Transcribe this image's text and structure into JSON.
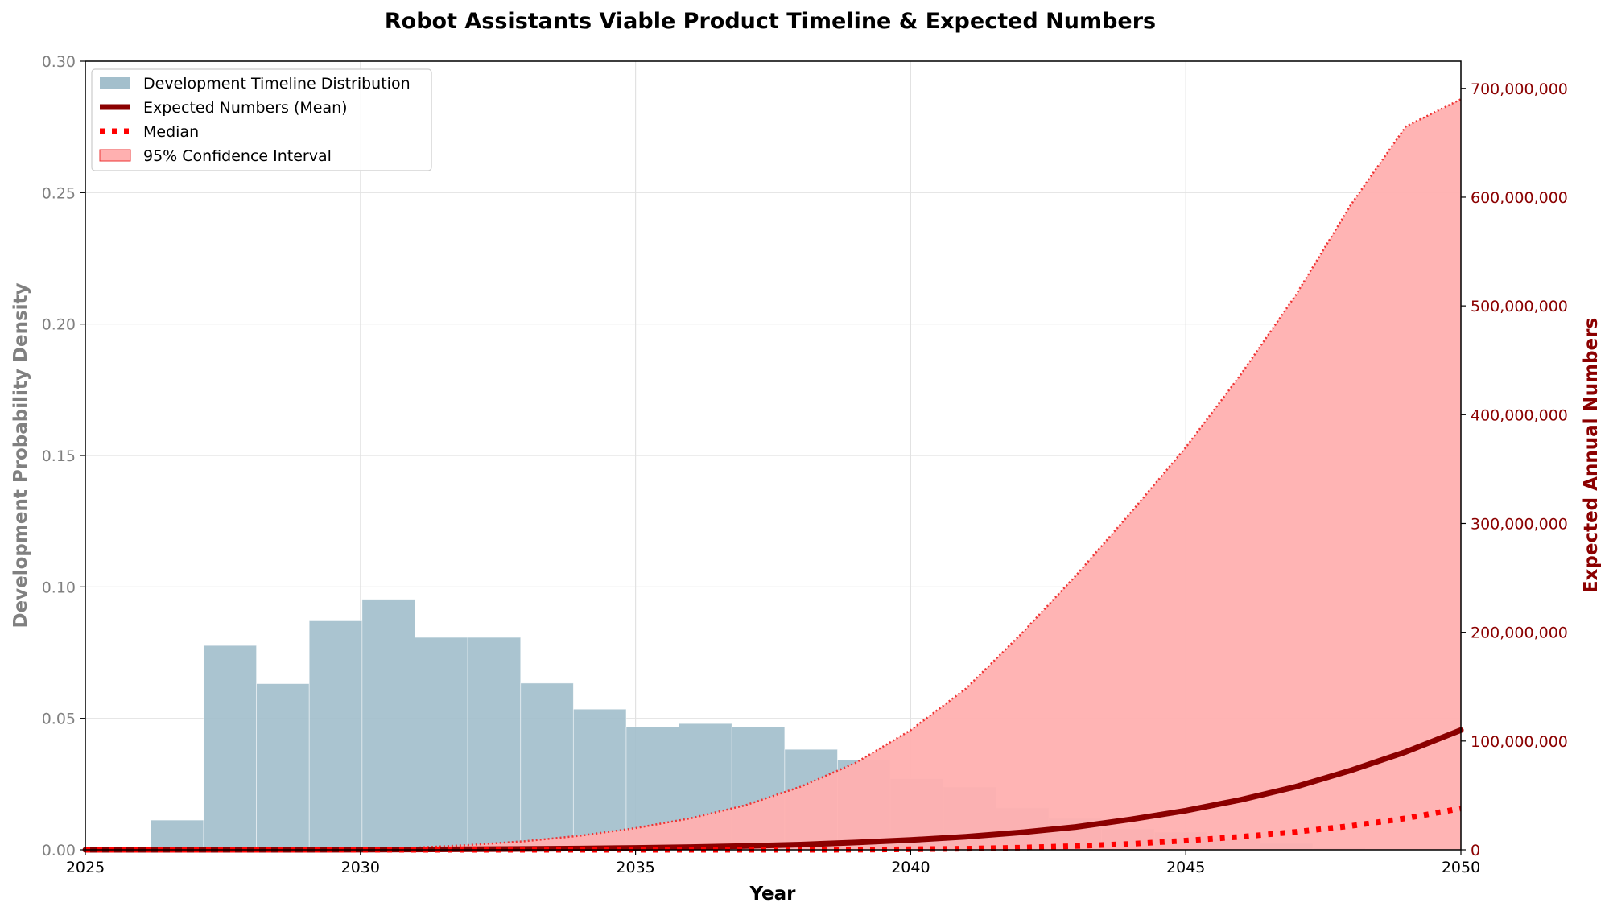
{
  "chart_data": {
    "type": "bar+line+area",
    "title": "Robot Assistants Viable Product Timeline & Expected Numbers",
    "xlabel": "Year",
    "ylabel_left": "Development Probability Density",
    "ylabel_right": "Expected Annual Numbers",
    "xlim": [
      2025,
      2050
    ],
    "ylim_left": [
      0,
      0.3
    ],
    "ylim_right": [
      0,
      725000000
    ],
    "x_ticks": [
      2025,
      2030,
      2035,
      2040,
      2045,
      2050
    ],
    "y_left_ticks": [
      "0.00",
      "0.05",
      "0.10",
      "0.15",
      "0.20",
      "0.25",
      "0.30"
    ],
    "y_right_ticks": [
      "0",
      "100,000,000",
      "200,000,000",
      "300,000,000",
      "400,000,000",
      "500,000,000",
      "600,000,000",
      "700,000,000"
    ],
    "grid": true,
    "legend_position": "top-left",
    "legend": {
      "histogram": "Development Timeline Distribution",
      "mean": "Expected Numbers (Mean)",
      "median": "Median",
      "ci": "95% Confidence Interval"
    },
    "colors": {
      "histogram": "#a3bfcc",
      "mean": "#8b0000",
      "median": "#ff0000",
      "ci_fill": "#ffb0b0",
      "ci_edge": "#ee3333"
    },
    "histogram": {
      "bin_edges": [
        2025.23,
        2026.19,
        2027.15,
        2028.11,
        2029.07,
        2030.03,
        2030.99,
        2031.95,
        2032.91,
        2033.87,
        2034.83,
        2035.79,
        2036.75,
        2037.71,
        2038.67,
        2039.63,
        2040.59,
        2041.55,
        2042.51,
        2043.47,
        2044.43,
        2045.39,
        2046.35,
        2047.31,
        2048.27,
        2049.23,
        2050.19
      ],
      "density": [
        0.0,
        0.0113,
        0.0777,
        0.0632,
        0.0871,
        0.0953,
        0.0808,
        0.0808,
        0.0634,
        0.0535,
        0.0468,
        0.048,
        0.0468,
        0.0382,
        0.0342,
        0.0271,
        0.0239,
        0.016,
        0.012,
        0.008,
        0.0068,
        0.004,
        0.0024,
        0.0008,
        0.0004,
        0.0004
      ]
    },
    "years": [
      2025,
      2026,
      2027,
      2028,
      2029,
      2030,
      2031,
      2032,
      2033,
      2034,
      2035,
      2036,
      2037,
      2038,
      2039,
      2040,
      2041,
      2042,
      2043,
      2044,
      2045,
      2046,
      2047,
      2048,
      2049,
      2050
    ],
    "series": [
      {
        "name": "Expected Numbers (Mean)",
        "values": [
          0,
          0,
          0,
          0,
          0,
          100000,
          300000,
          500000,
          800000,
          1200000,
          1800000,
          2500000,
          3500000,
          4800000,
          6700000,
          9000000,
          12000000,
          16000000,
          21000000,
          28000000,
          36000000,
          46000000,
          58000000,
          73000000,
          90000000,
          110000000
        ]
      },
      {
        "name": "Median",
        "values": [
          0,
          0,
          0,
          0,
          0,
          0,
          0,
          0,
          0,
          0,
          0,
          0,
          0,
          0,
          100000,
          500000,
          1000000,
          2000000,
          3500000,
          5500000,
          8500000,
          12000000,
          16500000,
          22000000,
          29000000,
          38000000
        ]
      },
      {
        "name": "95% Confidence Interval",
        "lower": [
          0,
          0,
          0,
          0,
          0,
          0,
          0,
          0,
          0,
          0,
          0,
          0,
          0,
          0,
          0,
          0,
          0,
          0,
          0,
          0,
          0,
          0,
          0,
          0,
          0,
          0
        ],
        "upper": [
          0,
          0,
          0,
          0,
          0,
          500000,
          2000000,
          4500000,
          8000000,
          13000000,
          20000000,
          29000000,
          41000000,
          58000000,
          80000000,
          110000000,
          148000000,
          198000000,
          252000000,
          310000000,
          370000000,
          437000000,
          510000000,
          593000000,
          665000000,
          690000000
        ]
      }
    ]
  }
}
